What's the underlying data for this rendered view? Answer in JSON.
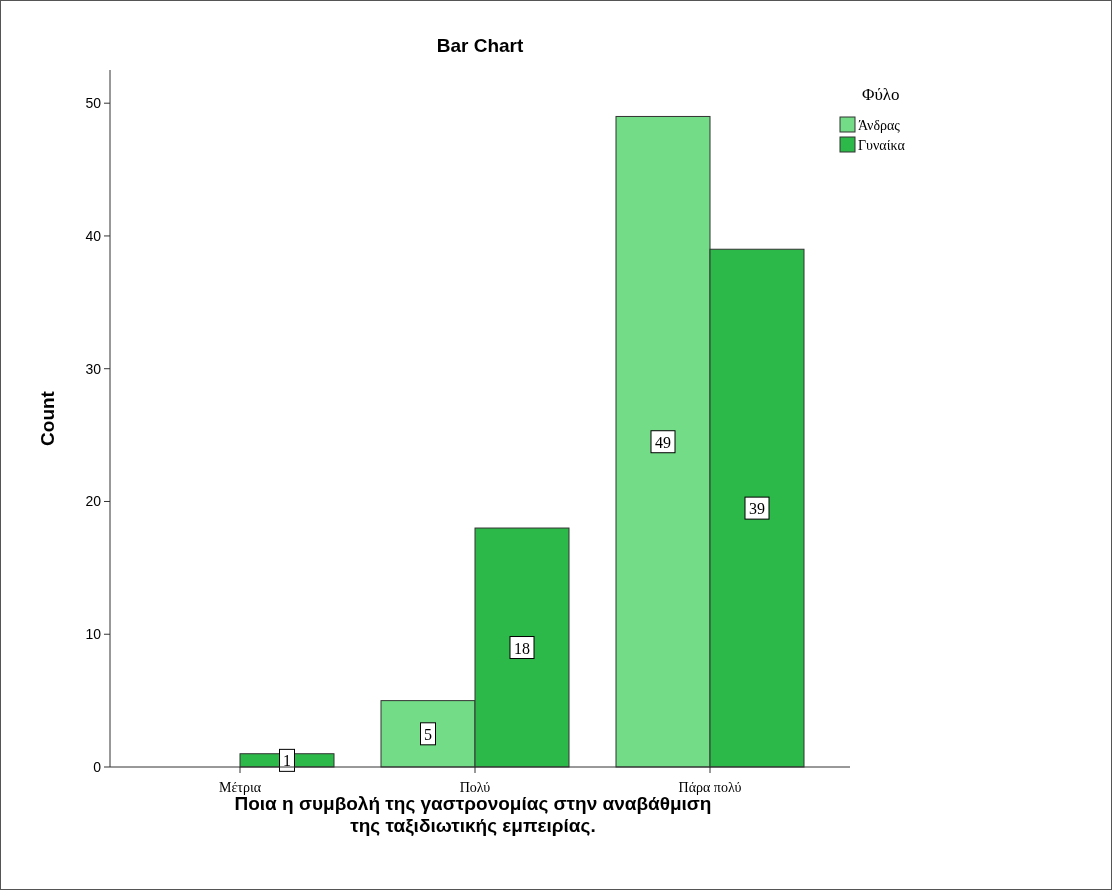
{
  "chart_data": {
    "type": "bar",
    "title": "Bar Chart",
    "xlabel": "Ποια η συμβολή της γαστρονομίας στην αναβάθμιση\nτης ταξιδιωτικής εμπειρίας.",
    "ylabel": "Count",
    "legend_title": "Φύλο",
    "categories": [
      "Μέτρια",
      "Πολύ",
      "Πάρα πολύ"
    ],
    "series": [
      {
        "name": "Άνδρας",
        "color": "#72dc86",
        "values": [
          null,
          5,
          49
        ]
      },
      {
        "name": "Γυναίκα",
        "color": "#2db84a",
        "values": [
          1,
          18,
          39
        ]
      }
    ],
    "ylim": [
      0,
      52.5
    ],
    "yticks": [
      0,
      10,
      20,
      30,
      40,
      50
    ],
    "data_labels": true,
    "legend": "top right",
    "grid": false
  }
}
